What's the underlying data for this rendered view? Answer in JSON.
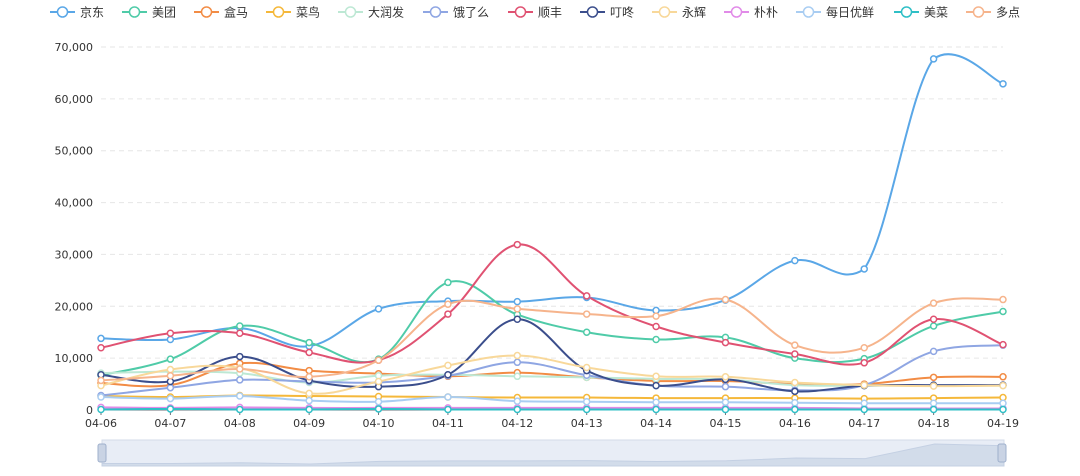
{
  "chart_data": {
    "type": "line",
    "title": "",
    "xlabel": "",
    "ylabel": "",
    "categories": [
      "04-06",
      "04-07",
      "04-08",
      "04-09",
      "04-10",
      "04-11",
      "04-12",
      "04-13",
      "04-14",
      "04-15",
      "04-16",
      "04-17",
      "04-18",
      "04-19"
    ],
    "ylim": [
      0,
      70000
    ],
    "yticks": [
      0,
      10000,
      20000,
      30000,
      40000,
      50000,
      60000,
      70000
    ],
    "ytick_labels": [
      "0",
      "10,000",
      "20,000",
      "30,000",
      "40,000",
      "50,000",
      "60,000",
      "70,000"
    ],
    "grid": "horizontal-dashed",
    "legend_position": "top",
    "series": [
      {
        "name": "京东",
        "color": "#5aa7e7",
        "values": [
          13800,
          13600,
          15800,
          12300,
          19500,
          21000,
          20900,
          21700,
          19200,
          21200,
          28800,
          27200,
          67700,
          62900
        ]
      },
      {
        "name": "美团",
        "color": "#4fcba8",
        "values": [
          6700,
          9800,
          16200,
          13000,
          9800,
          24600,
          18400,
          15000,
          13600,
          14000,
          10000,
          9900,
          16200,
          19000
        ]
      },
      {
        "name": "盒马",
        "color": "#f28c45",
        "values": [
          5200,
          4800,
          9000,
          7600,
          7000,
          6500,
          7200,
          6300,
          5600,
          5600,
          5000,
          5000,
          6300,
          6400
        ]
      },
      {
        "name": "菜鸟",
        "color": "#f5b83a",
        "values": [
          2700,
          2500,
          2800,
          2700,
          2600,
          2500,
          2400,
          2400,
          2300,
          2300,
          2300,
          2200,
          2300,
          2400
        ]
      },
      {
        "name": "大润发",
        "color": "#bde8d4",
        "values": [
          7100,
          7400,
          7100,
          5300,
          6600,
          6800,
          6500,
          6300,
          6000,
          5900,
          4800,
          4700,
          4700,
          4700
        ]
      },
      {
        "name": "饿了么",
        "color": "#8fa6e3",
        "values": [
          2800,
          4300,
          5800,
          5500,
          5300,
          6600,
          9200,
          6700,
          4700,
          4500,
          3800,
          4800,
          11300,
          12500
        ]
      },
      {
        "name": "顺丰",
        "color": "#e05272",
        "values": [
          12000,
          14800,
          14800,
          11100,
          9600,
          18500,
          31900,
          22000,
          16100,
          13000,
          10800,
          9100,
          17500,
          12600
        ]
      },
      {
        "name": "叮咚",
        "color": "#3b4e8c",
        "values": [
          6800,
          5500,
          10300,
          5700,
          4500,
          6800,
          17500,
          7600,
          4700,
          5900,
          3600,
          4700,
          4800,
          4800
        ]
      },
      {
        "name": "永辉",
        "color": "#f8d89a",
        "values": [
          4700,
          7800,
          8100,
          3200,
          5500,
          8600,
          10500,
          8200,
          6500,
          6400,
          5300,
          4800,
          4600,
          4700
        ]
      },
      {
        "name": "朴朴",
        "color": "#e18be8",
        "values": [
          500,
          400,
          500,
          400,
          400,
          400,
          400,
          400,
          400,
          400,
          400,
          300,
          300,
          300
        ]
      },
      {
        "name": "每日优鲜",
        "color": "#a9cdf2",
        "values": [
          2500,
          2200,
          2700,
          1800,
          1600,
          2500,
          1700,
          1600,
          1500,
          1500,
          1400,
          1300,
          1300,
          1300
        ]
      },
      {
        "name": "美菜",
        "color": "#2fbfc6",
        "values": [
          100,
          200,
          100,
          100,
          200,
          100,
          100,
          100,
          100,
          100,
          100,
          100,
          100,
          100
        ]
      },
      {
        "name": "多点",
        "color": "#f6b48c",
        "values": [
          5700,
          6600,
          7900,
          6400,
          9600,
          20400,
          19500,
          18500,
          18100,
          21300,
          12500,
          12000,
          20600,
          21300
        ]
      }
    ]
  }
}
